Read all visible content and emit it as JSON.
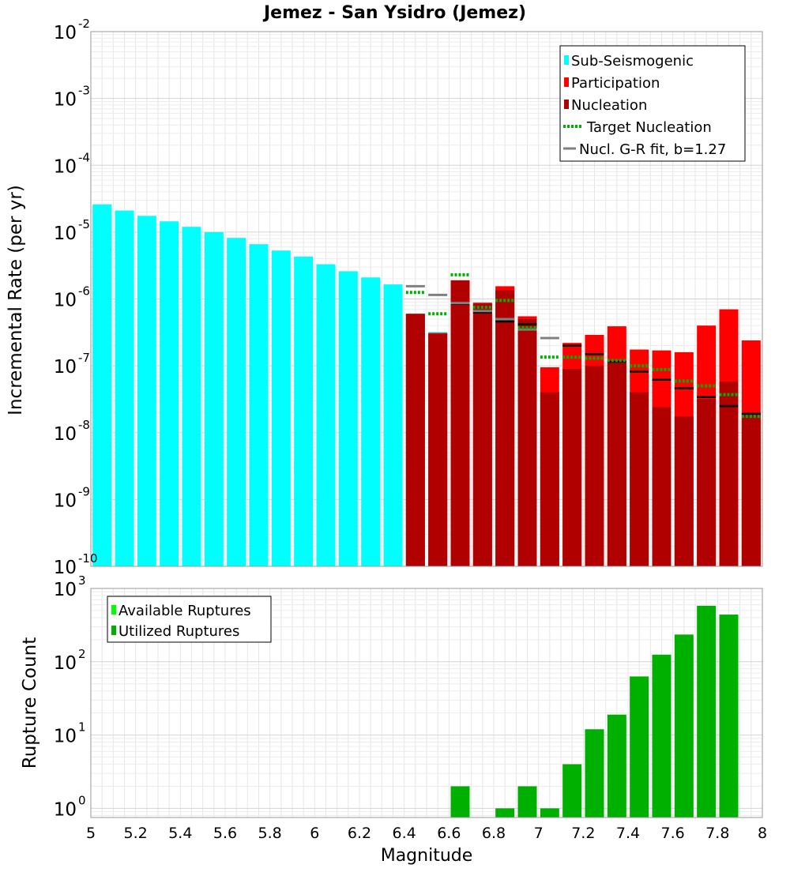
{
  "chart_data": [
    {
      "type": "bar",
      "title": "Jemez - San Ysidro (Jemez)",
      "xlabel": "",
      "ylabel": "Incremental Rate (per yr)",
      "xlim": [
        5,
        8
      ],
      "ylim": [
        1e-10,
        0.01
      ],
      "yscale": "log",
      "grid": true,
      "legend_position": "top-right",
      "colors": {
        "subseismogenic": "#00ffff",
        "participation": "#ff0000",
        "nucleation": "#b00000",
        "target": "#00b000",
        "grfit": "#808080",
        "participation_target": "#000000"
      },
      "x_ticks": [
        "5",
        "5.2",
        "5.4",
        "5.6",
        "5.8",
        "6",
        "6.2",
        "6.4",
        "6.6",
        "6.8",
        "7",
        "7.2",
        "7.4",
        "7.6",
        "7.8",
        "8"
      ],
      "y_ticks": [
        {
          "value": 1e-10,
          "base": "10",
          "exp": "-10"
        },
        {
          "value": 1e-09,
          "base": "10",
          "exp": "-9"
        },
        {
          "value": 1e-08,
          "base": "10",
          "exp": "-8"
        },
        {
          "value": 1e-07,
          "base": "10",
          "exp": "-7"
        },
        {
          "value": 1e-06,
          "base": "10",
          "exp": "-6"
        },
        {
          "value": 1e-05,
          "base": "10",
          "exp": "-5"
        },
        {
          "value": 0.0001,
          "base": "10",
          "exp": "-4"
        },
        {
          "value": 0.001,
          "base": "10",
          "exp": "-3"
        },
        {
          "value": 0.01,
          "base": "10",
          "exp": "-2"
        }
      ],
      "legend": [
        {
          "label": "Sub-Seismogenic",
          "kind": "box",
          "color": "#00ffff"
        },
        {
          "label": "Participation",
          "kind": "box",
          "color": "#ff0000"
        },
        {
          "label": "Nucleation",
          "kind": "box",
          "color": "#b00000"
        },
        {
          "label": "Target Nucleation",
          "kind": "dots",
          "color": "#00b000"
        },
        {
          "label": "Nucl. G-R fit, b=1.27",
          "kind": "line",
          "color": "#808080"
        }
      ],
      "subseismogenic": {
        "x": [
          5.05,
          5.15,
          5.25,
          5.35,
          5.45,
          5.55,
          5.65,
          5.75,
          5.85,
          5.95,
          6.05,
          6.15,
          6.25,
          6.35,
          6.45,
          6.55
        ],
        "values": [
          2.6e-05,
          2.1e-05,
          1.75e-05,
          1.45e-05,
          1.2e-05,
          1e-05,
          8.2e-06,
          6.6e-06,
          5.3e-06,
          4.3e-06,
          3.3e-06,
          2.6e-06,
          2.1e-06,
          1.65e-06,
          5e-07,
          3.2e-07
        ]
      },
      "participation": {
        "x": [
          6.45,
          6.55,
          6.65,
          6.75,
          6.85,
          6.95,
          7.05,
          7.15,
          7.25,
          7.35,
          7.45,
          7.55,
          7.65,
          7.75,
          7.85,
          7.95
        ],
        "values": [
          6e-07,
          3.1e-07,
          1.9e-06,
          8.8e-07,
          1.55e-06,
          5.5e-07,
          9.5e-08,
          2.2e-07,
          2.9e-07,
          3.9e-07,
          1.75e-07,
          1.7e-07,
          1.6e-07,
          4e-07,
          7e-07,
          2.4e-07
        ]
      },
      "nucleation": {
        "x": [
          6.45,
          6.55,
          6.65,
          6.75,
          6.85,
          6.95,
          7.05,
          7.15,
          7.25,
          7.35,
          7.45,
          7.55,
          7.65,
          7.75,
          7.85,
          7.95
        ],
        "values": [
          6e-07,
          3e-07,
          1.9e-06,
          8.5e-07,
          1.35e-06,
          5e-07,
          4e-08,
          9e-08,
          1e-07,
          1.1e-07,
          4e-08,
          2.4e-08,
          1.75e-08,
          3.2e-08,
          5.8e-08,
          2e-08
        ]
      },
      "target_nucleation": {
        "x": [
          6.45,
          6.55,
          6.65,
          6.75,
          6.85,
          6.95,
          7.05,
          7.15,
          7.25,
          7.35,
          7.45,
          7.55,
          7.65,
          7.75,
          7.85,
          7.95
        ],
        "values": [
          1.25e-06,
          6e-07,
          2.3e-06,
          7.5e-07,
          9.5e-07,
          3.7e-07,
          1.35e-07,
          1.35e-07,
          1.3e-07,
          1.2e-07,
          1e-07,
          8.8e-08,
          5.9e-08,
          5e-08,
          3.7e-08,
          1.75e-08
        ]
      },
      "participation_target": {
        "x": [
          6.65,
          6.75,
          6.85,
          6.95,
          7.15,
          7.25,
          7.35,
          7.45,
          7.55,
          7.65,
          7.75,
          7.85,
          7.95
        ],
        "values": [
          8.5e-07,
          6.3e-07,
          4.6e-07,
          4.2e-07,
          2e-07,
          1.5e-07,
          1.15e-07,
          8.2e-08,
          6.2e-08,
          4.6e-08,
          3.4e-08,
          2.5e-08,
          1.9e-08
        ]
      },
      "gr_fit": {
        "x": [
          6.45,
          6.55,
          6.65,
          6.75,
          6.85,
          6.95,
          7.05
        ],
        "values": [
          1.55e-06,
          1.15e-06,
          8.7e-07,
          6.6e-07,
          5e-07,
          3.5e-07,
          2.6e-07
        ]
      }
    },
    {
      "type": "bar",
      "title": "",
      "xlabel": "Magnitude",
      "ylabel": "Rupture Count",
      "xlim": [
        5,
        8
      ],
      "ylim": [
        0.75,
        1000
      ],
      "yscale": "log",
      "grid": true,
      "legend_position": "top-left",
      "colors": {
        "available": "#00ff00",
        "utilized": "#00b000"
      },
      "x_ticks": [
        "5",
        "5.2",
        "5.4",
        "5.6",
        "5.8",
        "6",
        "6.2",
        "6.4",
        "6.6",
        "6.8",
        "7",
        "7.2",
        "7.4",
        "7.6",
        "7.8",
        "8"
      ],
      "y_ticks": [
        {
          "value": 1,
          "base": "10",
          "exp": "0"
        },
        {
          "value": 10,
          "base": "10",
          "exp": "1"
        },
        {
          "value": 100,
          "base": "10",
          "exp": "2"
        },
        {
          "value": 1000,
          "base": "10",
          "exp": "3"
        }
      ],
      "legend": [
        {
          "label": "Available Ruptures",
          "kind": "box",
          "color": "#00ff00"
        },
        {
          "label": "Utilized Ruptures",
          "kind": "box",
          "color": "#00b000"
        }
      ],
      "utilized": {
        "x": [
          6.65,
          6.85,
          6.95,
          7.05,
          7.15,
          7.25,
          7.35,
          7.45,
          7.55,
          7.65,
          7.75,
          7.85
        ],
        "values": [
          2,
          1,
          2,
          1,
          4,
          12,
          19,
          63,
          125,
          235,
          580,
          440
        ]
      }
    }
  ]
}
